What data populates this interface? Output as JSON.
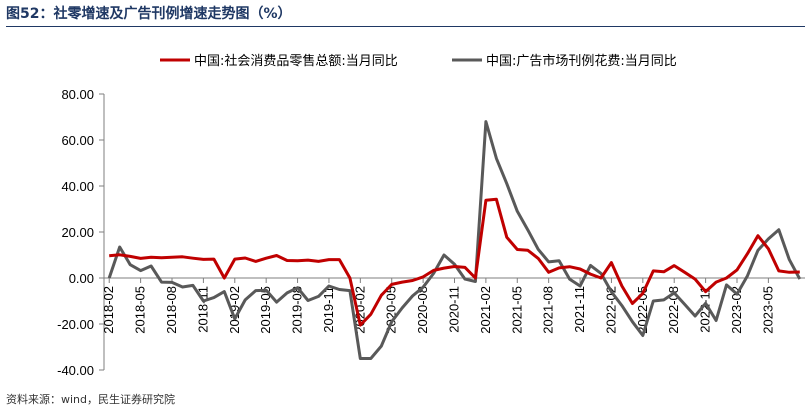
{
  "figure": {
    "title": "图52：社零增速及广告刊例增速走势图（%）",
    "source": "资料来源：wind，民生证券研究院"
  },
  "chart_data": {
    "type": "line",
    "title": "图52：社零增速及广告刊例增速走势图（%）",
    "xlabel": "",
    "ylabel": "",
    "ylim": [
      -40,
      80
    ],
    "yticks": [
      -40,
      -20,
      0,
      20,
      40,
      60,
      80
    ],
    "ytick_labels": [
      "-40.00",
      "-20.00",
      "0.00",
      "20.00",
      "40.00",
      "60.00",
      "80.00"
    ],
    "grid": false,
    "legend_position": "top",
    "x": [
      "2018-02",
      "2018-03",
      "2018-04",
      "2018-05",
      "2018-06",
      "2018-07",
      "2018-08",
      "2018-09",
      "2018-10",
      "2018-11",
      "2018-12",
      "2019-01",
      "2019-02",
      "2019-03",
      "2019-04",
      "2019-05",
      "2019-06",
      "2019-07",
      "2019-08",
      "2019-09",
      "2019-10",
      "2019-11",
      "2019-12",
      "2020-01",
      "2020-02",
      "2020-03",
      "2020-04",
      "2020-05",
      "2020-06",
      "2020-07",
      "2020-08",
      "2020-09",
      "2020-10",
      "2020-11",
      "2020-12",
      "2021-01",
      "2021-02",
      "2021-03",
      "2021-04",
      "2021-05",
      "2021-06",
      "2021-07",
      "2021-08",
      "2021-09",
      "2021-10",
      "2021-11",
      "2021-12",
      "2022-01",
      "2022-02",
      "2022-03",
      "2022-04",
      "2022-05",
      "2022-06",
      "2022-07",
      "2022-08",
      "2022-09",
      "2022-10",
      "2022-11",
      "2022-12",
      "2023-01",
      "2023-02",
      "2023-03",
      "2023-04",
      "2023-05",
      "2023-06",
      "2023-07",
      "2023-08"
    ],
    "xtick_labels": [
      "2018-02",
      "2018-05",
      "2018-08",
      "2018-11",
      "2019-02",
      "2019-05",
      "2019-08",
      "2019-11",
      "2020-02",
      "2020-05",
      "2020-08",
      "2020-11",
      "2021-02",
      "2021-05",
      "2021-08",
      "2021-11",
      "2022-02",
      "2022-05",
      "2022-08",
      "2022-11",
      "2023-02",
      "2023-05"
    ],
    "series": [
      {
        "name": "中国:社会消费品零售总额:当月同比",
        "color": "#c00000",
        "values": [
          9.7,
          10.1,
          9.4,
          8.5,
          9.0,
          8.8,
          9.0,
          9.2,
          8.6,
          8.1,
          8.2,
          0.0,
          8.2,
          8.7,
          7.2,
          8.6,
          9.8,
          7.6,
          7.5,
          7.8,
          7.2,
          8.0,
          8.0,
          0.0,
          -20.5,
          -15.8,
          -7.5,
          -2.8,
          -1.8,
          -1.1,
          0.5,
          3.3,
          4.3,
          5.0,
          4.6,
          0.0,
          33.8,
          34.2,
          17.7,
          12.4,
          12.1,
          8.5,
          2.5,
          4.4,
          4.9,
          3.9,
          1.7,
          0.0,
          6.7,
          -3.5,
          -11.1,
          -6.7,
          3.1,
          2.7,
          5.4,
          2.5,
          -0.5,
          -5.9,
          -1.8,
          0.0,
          3.5,
          10.6,
          18.4,
          12.7,
          3.1,
          2.5,
          2.6
        ]
      },
      {
        "name": "中国:广告市场刊例花费:当月同比",
        "color": "#595959",
        "values": [
          0.0,
          13.5,
          5.8,
          3.2,
          5.2,
          -1.8,
          -1.9,
          -3.9,
          -3.2,
          -10.0,
          -8.5,
          -5.9,
          -17.8,
          -9.5,
          -5.5,
          -5.3,
          -10.5,
          -6.5,
          -4.2,
          -9.8,
          -8.0,
          -3.5,
          -5.0,
          -5.5,
          -35.0,
          -35.0,
          -29.6,
          -19.0,
          -13.0,
          -7.8,
          -4.0,
          2.0,
          10.0,
          6.0,
          -0.5,
          -1.5,
          68.0,
          52.0,
          41.0,
          29.0,
          21.0,
          12.5,
          7.0,
          7.5,
          -0.5,
          -3.5,
          5.5,
          2.0,
          -6.0,
          -12.0,
          -19.0,
          -25.0,
          -10.0,
          -9.5,
          -6.5,
          -11.5,
          -16.5,
          -11.0,
          -18.5,
          -3.0,
          -7.0,
          1.0,
          12.0,
          17.0,
          21.0,
          8.0,
          -0.5
        ]
      }
    ]
  }
}
